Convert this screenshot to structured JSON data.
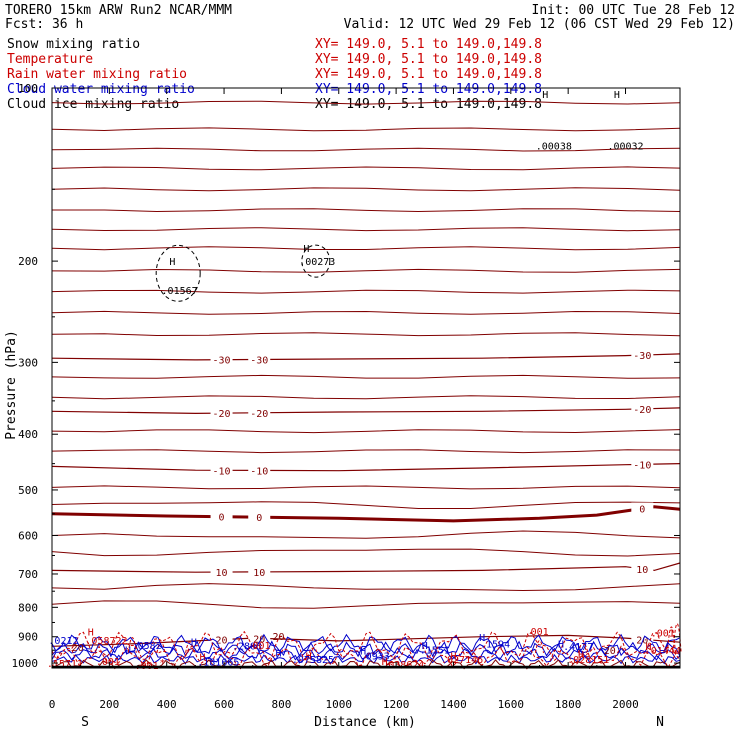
{
  "header": {
    "model": "TORERO  15km ARW   Run2    NCAR/MMM",
    "init": "Init: 00 UTC Tue 28 Feb 12",
    "fcst": "Fcst:   36 h",
    "valid": "Valid: 12 UTC Wed 29 Feb 12 (06 CST Wed 29 Feb 12)"
  },
  "colors": {
    "temperature": "#800000",
    "rain": "#cc0000",
    "cloud_water": "#0000cc",
    "snow": "#000000",
    "cloud_ice": "#000000",
    "axes": "#000000"
  },
  "chart_data": {
    "type": "line",
    "title": "",
    "xlabel": "Distance (km)",
    "ylabel": "Pressure (hPa)",
    "xlim": [
      0,
      2190
    ],
    "ylim": [
      1020,
      100
    ],
    "y_scale": "log",
    "x_ticks": [
      "0",
      "200",
      "400",
      "600",
      "800",
      "1000",
      "1200",
      "1400",
      "1600",
      "1800",
      "2000"
    ],
    "y_ticks": [
      "100",
      "200",
      "300",
      "400",
      "500",
      "600",
      "700",
      "800",
      "900",
      "1000"
    ],
    "direction_labels": {
      "left": "S",
      "right": "N"
    },
    "legend": [
      {
        "name": "Snow mixing ratio",
        "xy": "XY= 149.0,  5.1 to 149.0,149.8"
      },
      {
        "name": "Temperature",
        "xy": "XY= 149.0,  5.1 to 149.0,149.8"
      },
      {
        "name": "Rain water mixing ratio",
        "xy": "XY= 149.0,  5.1 to 149.0,149.8"
      },
      {
        "name": "Cloud water mixing ratio",
        "xy": "XY= 149.0,  5.1 to 149.0,149.8"
      },
      {
        "name": "Cloud ice mixing ratio",
        "xy": "XY= 149.0,  5.1 to 149.0,149.8"
      }
    ],
    "temperature_contours": [
      {
        "label": "-30",
        "points": [
          [
            0,
            295
          ],
          [
            500,
            297
          ],
          [
            1000,
            296
          ],
          [
            1500,
            295
          ],
          [
            2000,
            292
          ],
          [
            2190,
            290
          ]
        ]
      },
      {
        "label": "-20",
        "points": [
          [
            0,
            365
          ],
          [
            500,
            368
          ],
          [
            1000,
            366
          ],
          [
            1500,
            365
          ],
          [
            2000,
            362
          ],
          [
            2190,
            360
          ]
        ]
      },
      {
        "label": "-10",
        "points": [
          [
            0,
            455
          ],
          [
            500,
            462
          ],
          [
            1000,
            463
          ],
          [
            1500,
            458
          ],
          [
            2000,
            452
          ],
          [
            2190,
            450
          ]
        ]
      },
      {
        "label": "0",
        "points": [
          [
            0,
            550
          ],
          [
            400,
            555
          ],
          [
            1000,
            560
          ],
          [
            1400,
            566
          ],
          [
            1700,
            560
          ],
          [
            1900,
            553
          ],
          [
            2100,
            535
          ],
          [
            2190,
            540
          ]
        ]
      },
      {
        "label": "10",
        "points": [
          [
            0,
            690
          ],
          [
            500,
            695
          ],
          [
            1000,
            693
          ],
          [
            1500,
            690
          ],
          [
            2000,
            680
          ],
          [
            2100,
            690
          ],
          [
            2190,
            670
          ]
        ]
      },
      {
        "label": "20",
        "points": [
          [
            0,
            935
          ],
          [
            300,
            925
          ],
          [
            700,
            905
          ],
          [
            1000,
            915
          ],
          [
            1500,
            900
          ],
          [
            1800,
            895
          ],
          [
            2000,
            905
          ],
          [
            2190,
            920
          ]
        ]
      }
    ],
    "annotations": [
      {
        "text": "H",
        "x": 420,
        "y": 203,
        "color": "#000000"
      },
      {
        "text": ".01567",
        "x": 445,
        "y": 228,
        "color": "#000000"
      },
      {
        "text": "H",
        "x": 887,
        "y": 193,
        "color": "#000000"
      },
      {
        "text": ".00273",
        "x": 925,
        "y": 203,
        "color": "#000000"
      },
      {
        "text": ".00038",
        "x": 1750,
        "y": 128,
        "color": "#000000"
      },
      {
        "text": ".00032",
        "x": 2000,
        "y": 128,
        "color": "#000000"
      },
      {
        "text": "H",
        "x": 1720,
        "y": 104,
        "color": "#000000"
      },
      {
        "text": "H",
        "x": 1970,
        "y": 104,
        "color": "#000000"
      },
      {
        "text": ".0212",
        "x": 40,
        "y": 926,
        "color": "#0000cc"
      },
      {
        "text": "H",
        "x": 135,
        "y": 896,
        "color": "#cc0000"
      },
      {
        "text": ".058722",
        "x": 190,
        "y": 926,
        "color": "#cc0000"
      },
      {
        "text": "20",
        "x": 90,
        "y": 952,
        "color": "#800000"
      },
      {
        "text": ".001",
        "x": 195,
        "y": 1008,
        "color": "#cc0000"
      },
      {
        "text": ".15711",
        "x": 45,
        "y": 1015,
        "color": "#cc0000"
      },
      {
        "text": ".0582",
        "x": 330,
        "y": 946,
        "color": "#0000cc"
      },
      {
        "text": "U",
        "x": 265,
        "y": 962,
        "color": "#0000cc"
      },
      {
        "text": "H",
        "x": 495,
        "y": 932,
        "color": "#0000cc"
      },
      {
        "text": ".001",
        "x": 330,
        "y": 1025,
        "color": "#cc0000"
      },
      {
        "text": "*",
        "x": 385,
        "y": 1012,
        "color": "#cc0000"
      },
      {
        "text": "H",
        "x": 525,
        "y": 990,
        "color": "#cc0000"
      },
      {
        "text": ".181665",
        "x": 580,
        "y": 1010,
        "color": "#0000cc"
      },
      {
        "text": ".2803",
        "x": 680,
        "y": 948,
        "color": "#0000cc"
      },
      {
        "text": ".001",
        "x": 720,
        "y": 945,
        "color": "#cc0000"
      },
      {
        "text": "20",
        "x": 790,
        "y": 912,
        "color": "#800000"
      },
      {
        "text": "H",
        "x": 790,
        "y": 974,
        "color": "#0000cc"
      },
      {
        "text": "H",
        "x": 895,
        "y": 985,
        "color": "#cc0000"
      },
      {
        "text": ".075825",
        "x": 910,
        "y": 1000,
        "color": "#0000cc"
      },
      {
        "text": "H",
        "x": 1085,
        "y": 966,
        "color": "#0000cc"
      },
      {
        "text": ".0933",
        "x": 1125,
        "y": 986,
        "color": "#0000cc"
      },
      {
        "text": "H",
        "x": 1160,
        "y": 1008,
        "color": "#cc0000"
      },
      {
        "text": ".038624",
        "x": 1225,
        "y": 1020,
        "color": "#cc0000"
      },
      {
        "text": "H",
        "x": 1300,
        "y": 945,
        "color": "#0000cc"
      },
      {
        "text": ".1551",
        "x": 1335,
        "y": 962,
        "color": "#0000cc"
      },
      {
        "text": "H",
        "x": 1400,
        "y": 985,
        "color": "#cc0000"
      },
      {
        "text": ".027146",
        "x": 1430,
        "y": 1000,
        "color": "#cc0000"
      },
      {
        "text": "H",
        "x": 1500,
        "y": 915,
        "color": "#0000cc"
      },
      {
        "text": ".1594",
        "x": 1545,
        "y": 940,
        "color": "#0000cc"
      },
      {
        "text": ".001",
        "x": 1690,
        "y": 893,
        "color": "#cc0000"
      },
      {
        "text": "H",
        "x": 1775,
        "y": 940,
        "color": "#0000cc"
      },
      {
        "text": ".4177",
        "x": 1835,
        "y": 950,
        "color": "#0000cc"
      },
      {
        "text": "H",
        "x": 1845,
        "y": 980,
        "color": "#cc0000"
      },
      {
        "text": ".028151",
        "x": 1870,
        "y": 1000,
        "color": "#cc0000"
      },
      {
        "text": "20",
        "x": 1945,
        "y": 965,
        "color": "#800000"
      },
      {
        "text": ".001",
        "x": 2130,
        "y": 900,
        "color": "#cc0000"
      },
      {
        "text": "H",
        "x": 2080,
        "y": 950,
        "color": "#cc0000"
      },
      {
        "text": ".01444",
        "x": 2130,
        "y": 965,
        "color": "#cc0000"
      }
    ]
  }
}
